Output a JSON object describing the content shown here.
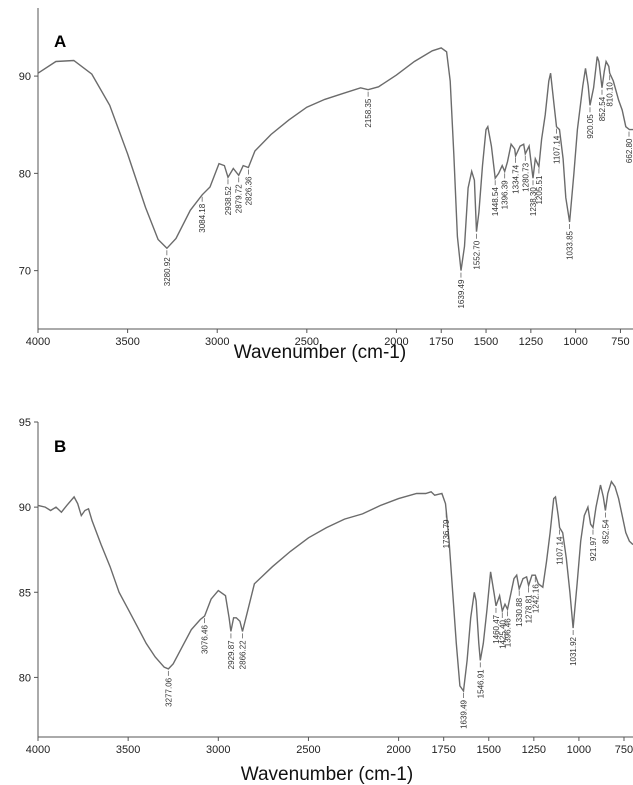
{
  "chart_data": [
    {
      "type": "line",
      "panel_label": "A",
      "xlabel": "Wavenumber (cm-1)",
      "ylabel": "",
      "xlim": [
        4000,
        680
      ],
      "ylim": [
        64,
        97
      ],
      "x_ticks": [
        4000,
        3500,
        3000,
        2500,
        2000,
        1750,
        1500,
        1250,
        1000,
        750
      ],
      "y_ticks": [
        70,
        80,
        90
      ],
      "x_tick_labels": [
        "4000",
        "3500",
        "3000",
        "2500",
        "2000",
        "1750",
        "1500",
        "1250",
        "1000",
        "750"
      ],
      "y_tick_labels": [
        "70",
        "80",
        "90"
      ],
      "grid": false,
      "series": [
        {
          "points": [
            [
              4000,
              90.3
            ],
            [
              3900,
              91.5
            ],
            [
              3800,
              91.6
            ],
            [
              3700,
              90.2
            ],
            [
              3600,
              87.0
            ],
            [
              3500,
              82.0
            ],
            [
              3400,
              76.5
            ],
            [
              3330,
              73.2
            ],
            [
              3281,
              72.3
            ],
            [
              3230,
              73.3
            ],
            [
              3150,
              76.2
            ],
            [
              3084,
              77.8
            ],
            [
              3040,
              78.6
            ],
            [
              2990,
              81.0
            ],
            [
              2960,
              80.8
            ],
            [
              2940,
              79.6
            ],
            [
              2910,
              80.5
            ],
            [
              2880,
              79.8
            ],
            [
              2855,
              80.8
            ],
            [
              2826,
              80.6
            ],
            [
              2790,
              82.3
            ],
            [
              2700,
              84.0
            ],
            [
              2600,
              85.5
            ],
            [
              2500,
              86.8
            ],
            [
              2400,
              87.6
            ],
            [
              2300,
              88.2
            ],
            [
              2200,
              88.8
            ],
            [
              2158,
              88.6
            ],
            [
              2100,
              88.9
            ],
            [
              2000,
              90.1
            ],
            [
              1900,
              91.5
            ],
            [
              1800,
              92.6
            ],
            [
              1750,
              92.9
            ],
            [
              1720,
              92.5
            ],
            [
              1700,
              89.5
            ],
            [
              1680,
              82.0
            ],
            [
              1660,
              73.5
            ],
            [
              1640,
              70.0
            ],
            [
              1620,
              72.5
            ],
            [
              1600,
              78.5
            ],
            [
              1580,
              80.2
            ],
            [
              1565,
              79.3
            ],
            [
              1553,
              74.0
            ],
            [
              1540,
              76.0
            ],
            [
              1520,
              80.8
            ],
            [
              1500,
              84.5
            ],
            [
              1490,
              84.8
            ],
            [
              1470,
              82.8
            ],
            [
              1449,
              79.5
            ],
            [
              1430,
              80.0
            ],
            [
              1410,
              80.8
            ],
            [
              1396,
              80.2
            ],
            [
              1380,
              81.2
            ],
            [
              1360,
              83.0
            ],
            [
              1340,
              82.5
            ],
            [
              1335,
              81.8
            ],
            [
              1310,
              82.8
            ],
            [
              1290,
              83.0
            ],
            [
              1281,
              82.0
            ],
            [
              1260,
              82.8
            ],
            [
              1238,
              79.5
            ],
            [
              1225,
              81.5
            ],
            [
              1205,
              80.7
            ],
            [
              1190,
              83.5
            ],
            [
              1170,
              86.0
            ],
            [
              1150,
              89.5
            ],
            [
              1140,
              90.3
            ],
            [
              1120,
              87.0
            ],
            [
              1107,
              84.8
            ],
            [
              1090,
              84.5
            ],
            [
              1070,
              81.5
            ],
            [
              1055,
              77.5
            ],
            [
              1034,
              75.0
            ],
            [
              1010,
              80.0
            ],
            [
              990,
              84.5
            ],
            [
              960,
              89.0
            ],
            [
              945,
              90.8
            ],
            [
              930,
              89.0
            ],
            [
              920,
              87.0
            ],
            [
              900,
              88.8
            ],
            [
              880,
              92.0
            ],
            [
              870,
              91.5
            ],
            [
              853,
              88.8
            ],
            [
              840,
              90.5
            ],
            [
              830,
              91.5
            ],
            [
              815,
              91.0
            ],
            [
              810,
              90.3
            ],
            [
              790,
              89.5
            ],
            [
              760,
              87.5
            ],
            [
              740,
              86.5
            ],
            [
              720,
              84.8
            ],
            [
              700,
              84.5
            ],
            [
              680,
              84.5
            ]
          ]
        }
      ],
      "annotations": [
        {
          "label": "3280.92",
          "x": 3281,
          "y": 72.3
        },
        {
          "label": "3084.18",
          "x": 3084,
          "y": 77.8
        },
        {
          "label": "2938.52",
          "x": 2940,
          "y": 79.6
        },
        {
          "label": "2879.72",
          "x": 2880,
          "y": 79.8
        },
        {
          "label": "2826.36",
          "x": 2826,
          "y": 80.6
        },
        {
          "label": "2158.35",
          "x": 2158,
          "y": 88.6
        },
        {
          "label": "1639.49",
          "x": 1640,
          "y": 70.0
        },
        {
          "label": "1552.70",
          "x": 1553,
          "y": 74.0
        },
        {
          "label": "1448.54",
          "x": 1449,
          "y": 79.5
        },
        {
          "label": "1396.39",
          "x": 1396,
          "y": 80.2
        },
        {
          "label": "1334.74",
          "x": 1335,
          "y": 81.8
        },
        {
          "label": "1280.73",
          "x": 1281,
          "y": 82.0
        },
        {
          "label": "1238.30",
          "x": 1238,
          "y": 79.5
        },
        {
          "label": "1205.51",
          "x": 1205,
          "y": 80.7
        },
        {
          "label": "1107.14",
          "x": 1107,
          "y": 84.8
        },
        {
          "label": "1033.85",
          "x": 1034,
          "y": 75.0
        },
        {
          "label": "920.05",
          "x": 920,
          "y": 87.0
        },
        {
          "label": "852.54",
          "x": 853,
          "y": 88.8
        },
        {
          "label": "810.10",
          "x": 810,
          "y": 90.3
        },
        {
          "label": "662.80",
          "x": 690,
          "y": 84.5
        }
      ]
    },
    {
      "type": "line",
      "panel_label": "B",
      "xlabel": "Wavenumber (cm-1)",
      "ylabel": "",
      "xlim": [
        4000,
        700
      ],
      "ylim": [
        76.5,
        95
      ],
      "x_ticks": [
        4000,
        3500,
        3000,
        2500,
        2000,
        1750,
        1500,
        1250,
        1000,
        750
      ],
      "y_ticks": [
        80,
        85,
        90,
        95
      ],
      "x_tick_labels": [
        "4000",
        "3500",
        "3000",
        "2500",
        "2000",
        "1750",
        "1500",
        "1250",
        "1000",
        "750"
      ],
      "y_tick_labels": [
        "80",
        "85",
        "90",
        "95"
      ],
      "grid": false,
      "series": [
        {
          "points": [
            [
              4000,
              90.1
            ],
            [
              3960,
              90.0
            ],
            [
              3930,
              89.8
            ],
            [
              3900,
              90.0
            ],
            [
              3870,
              89.7
            ],
            [
              3840,
              90.1
            ],
            [
              3800,
              90.6
            ],
            [
              3780,
              90.2
            ],
            [
              3760,
              89.5
            ],
            [
              3740,
              89.8
            ],
            [
              3720,
              89.9
            ],
            [
              3700,
              89.2
            ],
            [
              3650,
              87.8
            ],
            [
              3600,
              86.5
            ],
            [
              3550,
              85.0
            ],
            [
              3500,
              84.0
            ],
            [
              3450,
              83.0
            ],
            [
              3400,
              82.0
            ],
            [
              3350,
              81.2
            ],
            [
              3300,
              80.6
            ],
            [
              3277,
              80.5
            ],
            [
              3250,
              80.8
            ],
            [
              3200,
              81.8
            ],
            [
              3150,
              82.8
            ],
            [
              3100,
              83.4
            ],
            [
              3076,
              83.6
            ],
            [
              3040,
              84.6
            ],
            [
              3000,
              85.1
            ],
            [
              2960,
              84.8
            ],
            [
              2940,
              83.5
            ],
            [
              2930,
              82.7
            ],
            [
              2915,
              83.5
            ],
            [
              2900,
              83.5
            ],
            [
              2880,
              83.3
            ],
            [
              2866,
              82.7
            ],
            [
              2840,
              83.8
            ],
            [
              2800,
              85.5
            ],
            [
              2700,
              86.5
            ],
            [
              2600,
              87.4
            ],
            [
              2500,
              88.2
            ],
            [
              2400,
              88.8
            ],
            [
              2300,
              89.3
            ],
            [
              2200,
              89.6
            ],
            [
              2100,
              90.1
            ],
            [
              2000,
              90.5
            ],
            [
              1900,
              90.8
            ],
            [
              1850,
              90.8
            ],
            [
              1820,
              90.9
            ],
            [
              1800,
              90.7
            ],
            [
              1760,
              90.8
            ],
            [
              1740,
              90.2
            ],
            [
              1736,
              89.8
            ],
            [
              1720,
              88.0
            ],
            [
              1700,
              85.0
            ],
            [
              1680,
              82.0
            ],
            [
              1660,
              79.5
            ],
            [
              1640,
              79.2
            ],
            [
              1620,
              81.0
            ],
            [
              1600,
              83.5
            ],
            [
              1580,
              85.0
            ],
            [
              1570,
              84.5
            ],
            [
              1555,
              82.0
            ],
            [
              1547,
              81.0
            ],
            [
              1530,
              82.0
            ],
            [
              1510,
              84.0
            ],
            [
              1490,
              86.2
            ],
            [
              1470,
              84.9
            ],
            [
              1460,
              84.2
            ],
            [
              1440,
              84.8
            ],
            [
              1425,
              83.9
            ],
            [
              1410,
              84.3
            ],
            [
              1396,
              84.0
            ],
            [
              1380,
              84.8
            ],
            [
              1360,
              85.8
            ],
            [
              1345,
              86.0
            ],
            [
              1331,
              85.2
            ],
            [
              1310,
              85.8
            ],
            [
              1290,
              85.9
            ],
            [
              1279,
              85.4
            ],
            [
              1260,
              86.0
            ],
            [
              1242,
              86.0
            ],
            [
              1225,
              85.5
            ],
            [
              1200,
              85.3
            ],
            [
              1180,
              86.8
            ],
            [
              1160,
              88.5
            ],
            [
              1140,
              90.5
            ],
            [
              1130,
              90.6
            ],
            [
              1115,
              89.5
            ],
            [
              1107,
              88.8
            ],
            [
              1090,
              88.5
            ],
            [
              1070,
              87.0
            ],
            [
              1050,
              85.0
            ],
            [
              1032,
              82.9
            ],
            [
              1010,
              85.5
            ],
            [
              990,
              88.0
            ],
            [
              970,
              89.5
            ],
            [
              950,
              90.0
            ],
            [
              935,
              89.0
            ],
            [
              922,
              88.8
            ],
            [
              905,
              90.0
            ],
            [
              880,
              91.3
            ],
            [
              865,
              90.6
            ],
            [
              853,
              89.8
            ],
            [
              840,
              90.8
            ],
            [
              820,
              91.5
            ],
            [
              800,
              91.2
            ],
            [
              780,
              90.5
            ],
            [
              760,
              89.5
            ],
            [
              740,
              88.5
            ],
            [
              720,
              88.0
            ],
            [
              700,
              87.8
            ]
          ]
        }
      ],
      "annotations": [
        {
          "label": "3277.06",
          "x": 3277,
          "y": 80.5
        },
        {
          "label": "3076.46",
          "x": 3076,
          "y": 83.6
        },
        {
          "label": "2929.87",
          "x": 2930,
          "y": 82.7
        },
        {
          "label": "2866.22",
          "x": 2866,
          "y": 82.7
        },
        {
          "label": "1736.79",
          "x": 1736,
          "y": 89.8
        },
        {
          "label": "1639.49",
          "x": 1640,
          "y": 79.2
        },
        {
          "label": "1546.91",
          "x": 1547,
          "y": 81.0
        },
        {
          "label": "1460.47",
          "x": 1460,
          "y": 84.2
        },
        {
          "label": "1425.40",
          "x": 1425,
          "y": 83.9
        },
        {
          "label": "1396.46",
          "x": 1396,
          "y": 84.0
        },
        {
          "label": "1330.88",
          "x": 1331,
          "y": 85.2
        },
        {
          "label": "1278.81",
          "x": 1279,
          "y": 85.4
        },
        {
          "label": "1242.16",
          "x": 1242,
          "y": 86.0
        },
        {
          "label": "1107.14",
          "x": 1107,
          "y": 88.8
        },
        {
          "label": "1031.92",
          "x": 1032,
          "y": 82.9
        },
        {
          "label": "921.97",
          "x": 922,
          "y": 88.8
        },
        {
          "label": "852.54",
          "x": 853,
          "y": 89.8
        }
      ]
    }
  ]
}
